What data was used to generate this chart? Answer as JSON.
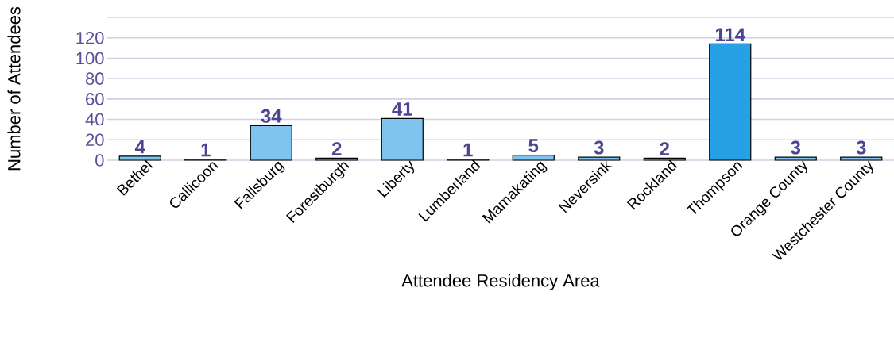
{
  "chart_data": {
    "type": "bar",
    "xlabel": "Attendee Residency Area",
    "ylabel": "Number of Attendees",
    "categories": [
      "Bethel",
      "Callicoon",
      "Fallsburg",
      "Forestburgh",
      "Liberty",
      "Lumberland",
      "Mamakating",
      "Neversink",
      "Rockland",
      "Thompson",
      "Orange County",
      "Westchester County"
    ],
    "values": [
      4,
      1,
      34,
      2,
      41,
      1,
      5,
      3,
      2,
      114,
      3,
      3
    ],
    "colors": [
      "#7fc4ef",
      "#7fc4ef",
      "#7fc4ef",
      "#7fc4ef",
      "#7fc4ef",
      "#7fc4ef",
      "#7fc4ef",
      "#7fc4ef",
      "#7fc4ef",
      "#27a0e6",
      "#7fc4ef",
      "#7fc4ef"
    ],
    "ylim": [
      0,
      140
    ],
    "yticks": [
      0,
      20,
      40,
      60,
      80,
      100,
      120,
      {
        "value": 140,
        "label": null
      }
    ],
    "grid": "y",
    "data_labels": true
  }
}
